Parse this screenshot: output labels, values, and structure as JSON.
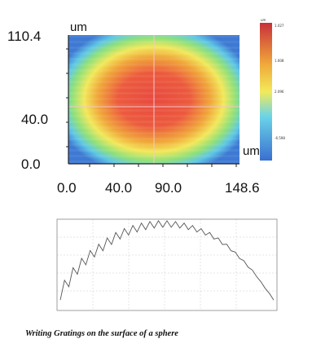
{
  "heatmap": {
    "y_unit": "um",
    "x_unit": "um",
    "y_ticks": [
      "110.4",
      "40.0",
      "0.0"
    ],
    "x_ticks": [
      "0.0",
      "40.0",
      "90.0",
      "148.6"
    ]
  },
  "colorbar": {
    "unit": "um",
    "labels": [
      "1.027",
      "1.608",
      "2.096",
      "-6.598"
    ],
    "colors": [
      "#c8303a",
      "#f0a83a",
      "#f2ea5a",
      "#6bd4e8",
      "#3a6fd0"
    ]
  },
  "line_plot": {
    "label": "",
    "color": "#555555"
  },
  "caption": "Writing Gratings on the surface of a sphere",
  "chart_data": {
    "type": "line",
    "title": "",
    "x": [
      0,
      4,
      8,
      12,
      16,
      20,
      24,
      28,
      32,
      36,
      40,
      44,
      48,
      52,
      56,
      60,
      64,
      68,
      72,
      76,
      80,
      84,
      88,
      92,
      96,
      100
    ],
    "y": [
      0.05,
      0.22,
      0.38,
      0.5,
      0.6,
      0.68,
      0.76,
      0.83,
      0.88,
      0.92,
      0.95,
      0.97,
      0.98,
      0.98,
      0.97,
      0.95,
      0.92,
      0.88,
      0.83,
      0.76,
      0.68,
      0.58,
      0.47,
      0.35,
      0.2,
      0.05
    ],
    "series_note": ""
  }
}
